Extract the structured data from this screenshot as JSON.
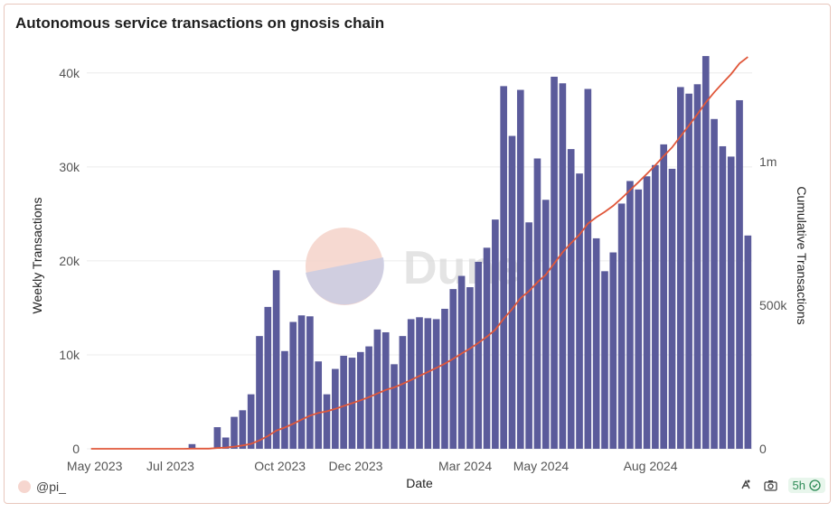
{
  "chart_data": {
    "type": "bar",
    "title": "Autonomous service transactions on gnosis chain",
    "xlabel": "Date",
    "ylabel": "Weekly Transactions",
    "y2label": "Cumulative Transactions",
    "x_ticks": [
      "May 2023",
      "Jul 2023",
      "Oct 2023",
      "Dec 2023",
      "Mar 2024",
      "May 2024",
      "Aug 2024"
    ],
    "y_ticks": [
      "0",
      "10k",
      "20k",
      "30k",
      "40k"
    ],
    "y2_ticks": [
      "0",
      "500k",
      "1m"
    ],
    "ylim": [
      0,
      42000
    ],
    "y2lim": [
      0,
      1375000
    ],
    "series": [
      {
        "name": "Weekly Transactions",
        "color": "#5b5b9b",
        "values": [
          0,
          0,
          0,
          0,
          0,
          0,
          0,
          0,
          0,
          0,
          0,
          0,
          500,
          0,
          0,
          2300,
          1200,
          3400,
          4100,
          5800,
          12000,
          15100,
          19000,
          10400,
          13500,
          14200,
          14100,
          9300,
          5800,
          8500,
          9900,
          9700,
          10300,
          10900,
          12700,
          12400,
          9000,
          12000,
          13800,
          14000,
          13900,
          13800,
          14900,
          17000,
          18400,
          17200,
          19900,
          21400,
          24400,
          38600,
          33300,
          38200,
          24100,
          30900,
          26500,
          39600,
          38900,
          31900,
          29300,
          38300,
          22400,
          18900,
          20900,
          26100,
          28500,
          27600,
          29000,
          30200,
          32400,
          29800,
          38500,
          37800,
          38800,
          41800,
          35100,
          32200,
          31100,
          37100,
          22700
        ]
      },
      {
        "name": "Cumulative Transactions",
        "color": "#e0573a",
        "type": "line",
        "values": [
          0,
          0,
          0,
          0,
          0,
          0,
          0,
          0,
          0,
          0,
          0,
          0,
          500,
          500,
          500,
          2800,
          4000,
          7400,
          11500,
          17300,
          29300,
          44400,
          63400,
          73800,
          87300,
          101500,
          115600,
          124900,
          130700,
          139200,
          149100,
          158800,
          169100,
          180000,
          192700,
          205100,
          214100,
          226100,
          239900,
          253900,
          267800,
          281600,
          296500,
          313500,
          331900,
          349100,
          369000,
          390400,
          414800,
          453400,
          486700,
          524900,
          549000,
          579900,
          606400,
          646000,
          684900,
          716800,
          746100,
          784400,
          806800,
          825700,
          846600,
          872700,
          901200,
          928800,
          957800,
          988000,
          1020400,
          1050200,
          1088700,
          1126500,
          1165300,
          1207100,
          1242200,
          1274400,
          1305500,
          1342600,
          1365300
        ]
      }
    ],
    "watermark": "Dune"
  },
  "footer": {
    "user": "@pi_",
    "freshness": "5h"
  }
}
